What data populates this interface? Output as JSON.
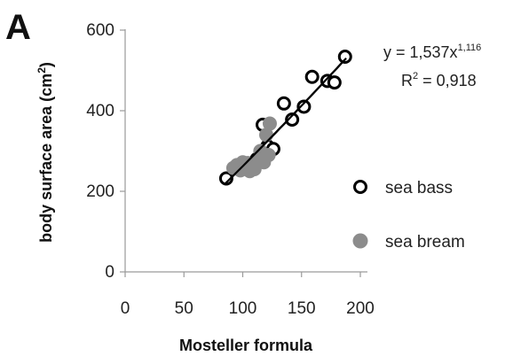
{
  "panel_label": "A",
  "chart_data": {
    "type": "scatter",
    "title": "",
    "xlabel": "Mosteller formula",
    "ylabel_main": "body surface area (cm",
    "ylabel_sup": "2",
    "ylabel_close": ")",
    "xlim": [
      0,
      200
    ],
    "ylim": [
      0,
      600
    ],
    "xticks": [
      "0",
      "50",
      "100",
      "150",
      "200"
    ],
    "yticks": [
      "0",
      "200",
      "400",
      "600"
    ],
    "grid": false,
    "legend_position": "right",
    "equation": {
      "prefix": "y = 1,537x",
      "exponent": "1,116",
      "r2_prefix": "R",
      "r2_sup": "2",
      "r2_value": " = 0,918"
    },
    "fit": {
      "coefficient": 1.537,
      "exponent": 1.116,
      "x_range": [
        85,
        188
      ]
    },
    "series": [
      {
        "name": "sea bass",
        "marker": "open-circle",
        "color": "#000000",
        "points": [
          [
            86,
            232
          ],
          [
            96,
            256
          ],
          [
            103,
            262
          ],
          [
            108,
            270
          ],
          [
            112,
            280
          ],
          [
            117,
            365
          ],
          [
            121,
            312
          ],
          [
            126,
            305
          ],
          [
            135,
            418
          ],
          [
            142,
            378
          ],
          [
            152,
            410
          ],
          [
            159,
            484
          ],
          [
            172,
            474
          ],
          [
            178,
            470
          ],
          [
            187,
            534
          ]
        ]
      },
      {
        "name": "sea bream",
        "marker": "filled-circle",
        "color": "#8c8c8c",
        "points": [
          [
            92,
            258
          ],
          [
            95,
            265
          ],
          [
            98,
            252
          ],
          [
            100,
            272
          ],
          [
            102,
            262
          ],
          [
            104,
            270
          ],
          [
            106,
            250
          ],
          [
            108,
            262
          ],
          [
            110,
            255
          ],
          [
            112,
            270
          ],
          [
            114,
            282
          ],
          [
            115,
            300
          ],
          [
            117,
            290
          ],
          [
            118,
            272
          ],
          [
            120,
            340
          ],
          [
            122,
            290
          ],
          [
            123,
            368
          ]
        ]
      }
    ]
  }
}
